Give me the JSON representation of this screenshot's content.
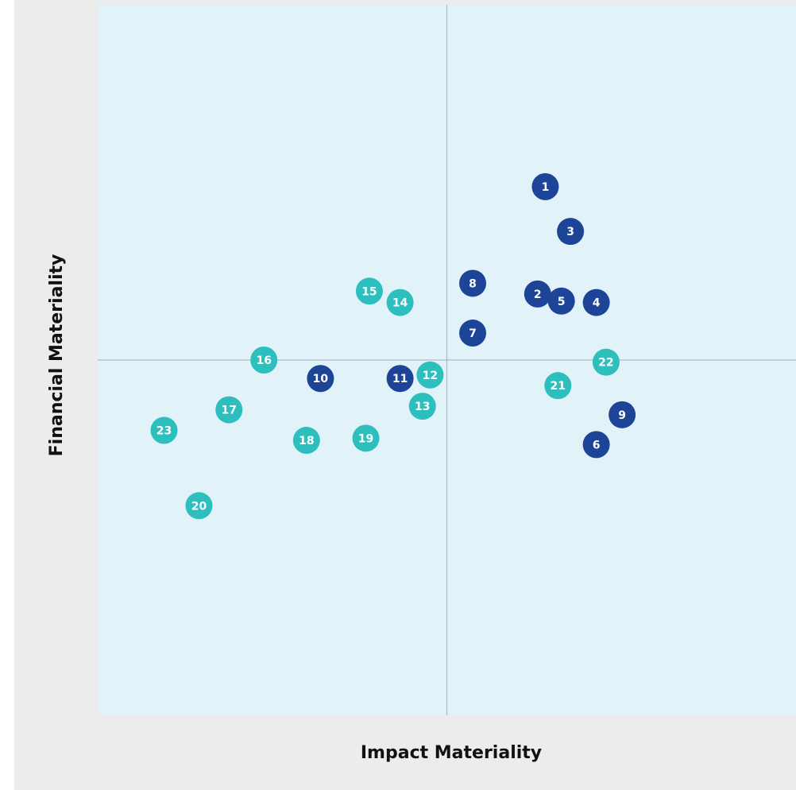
{
  "colors": {
    "frame": "#ececec",
    "plot_bg": "#e1f2f9",
    "divider": "#a9bcc6",
    "dark_blue": "#1d4496",
    "teal": "#2cbfbe"
  },
  "chart_data": {
    "type": "scatter",
    "title": "",
    "xlabel": "Impact Materiality",
    "ylabel": "Financial Materiality",
    "xlim": [
      0,
      10
    ],
    "ylim": [
      0,
      10
    ],
    "grid": false,
    "quadrant_lines": {
      "x": 5,
      "y": 5
    },
    "series": [
      {
        "color_key": "dark_blue",
        "points": [
          {
            "label": "1",
            "x": 6.41,
            "y": 7.44
          },
          {
            "label": "2",
            "x": 6.3,
            "y": 5.93
          },
          {
            "label": "3",
            "x": 6.77,
            "y": 6.81
          },
          {
            "label": "4",
            "x": 7.14,
            "y": 5.81
          },
          {
            "label": "5",
            "x": 6.64,
            "y": 5.83
          },
          {
            "label": "6",
            "x": 7.14,
            "y": 3.81
          },
          {
            "label": "7",
            "x": 5.37,
            "y": 5.38
          },
          {
            "label": "8",
            "x": 5.37,
            "y": 6.08
          },
          {
            "label": "9",
            "x": 7.51,
            "y": 4.23
          },
          {
            "label": "10",
            "x": 3.19,
            "y": 4.74
          },
          {
            "label": "11",
            "x": 4.33,
            "y": 4.74
          }
        ]
      },
      {
        "color_key": "teal",
        "points": [
          {
            "label": "12",
            "x": 4.76,
            "y": 4.79
          },
          {
            "label": "13",
            "x": 4.65,
            "y": 4.35
          },
          {
            "label": "14",
            "x": 4.33,
            "y": 5.81
          },
          {
            "label": "15",
            "x": 3.89,
            "y": 5.97
          },
          {
            "label": "16",
            "x": 2.38,
            "y": 5.0
          },
          {
            "label": "17",
            "x": 1.88,
            "y": 4.3
          },
          {
            "label": "18",
            "x": 2.99,
            "y": 3.87
          },
          {
            "label": "19",
            "x": 3.84,
            "y": 3.9
          },
          {
            "label": "20",
            "x": 1.45,
            "y": 2.95
          },
          {
            "label": "21",
            "x": 6.59,
            "y": 4.64
          },
          {
            "label": "22",
            "x": 7.28,
            "y": 4.97
          },
          {
            "label": "23",
            "x": 0.95,
            "y": 4.01
          }
        ]
      }
    ]
  }
}
